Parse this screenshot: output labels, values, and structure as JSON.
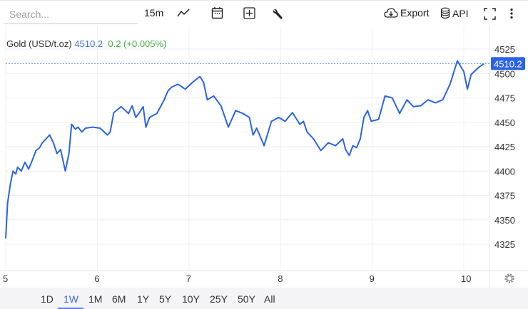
{
  "toolbar": {
    "search_placeholder": "Search...",
    "interval": "15m",
    "export": "Export",
    "api": "API",
    "icons": [
      "line-chart-icon",
      "calendar-icon",
      "add-icon",
      "wrench-icon",
      "cloud-download-icon",
      "database-icon",
      "fullscreen-icon",
      "more-icon"
    ]
  },
  "legend": {
    "name": "Gold (USD/t.oz)",
    "price": "4510.2",
    "change": "0.2 (+0.005%)",
    "price_color": "#3d6fe0",
    "change_color": "#3cb043"
  },
  "ranges": [
    "1D",
    "1W",
    "1M",
    "6M",
    "1Y",
    "5Y",
    "10Y",
    "25Y",
    "50Y",
    "All"
  ],
  "active_range": "1W",
  "chart_data": {
    "type": "line",
    "color": "#2b63e8",
    "last_value_label": "4510.2",
    "ylim": [
      4310,
      4540
    ],
    "xlim": [
      5,
      10.28
    ],
    "yticks": [
      4325,
      4350,
      4375,
      4400,
      4425,
      4450,
      4475,
      4500,
      4525
    ],
    "xticks": [
      5,
      6,
      7,
      8,
      9,
      10
    ],
    "grid": true,
    "x": [
      5.0,
      5.02,
      5.05,
      5.08,
      5.11,
      5.13,
      5.17,
      5.21,
      5.25,
      5.29,
      5.33,
      5.37,
      5.4,
      5.44,
      5.48,
      5.52,
      5.56,
      5.6,
      5.65,
      5.69,
      5.72,
      5.76,
      5.79,
      5.83,
      5.87,
      5.95,
      6.03,
      6.11,
      6.14,
      6.18,
      6.26,
      6.34,
      6.38,
      6.42,
      6.46,
      6.5,
      6.53,
      6.57,
      6.65,
      6.73,
      6.77,
      6.81,
      6.88,
      6.96,
      7.04,
      7.12,
      7.16,
      7.2,
      7.27,
      7.35,
      7.43,
      7.51,
      7.59,
      7.66,
      7.7,
      7.74,
      7.82,
      7.9,
      7.98,
      8.05,
      8.13,
      8.21,
      8.25,
      8.29,
      8.36,
      8.44,
      8.52,
      8.6,
      8.68,
      8.71,
      8.75,
      8.79,
      8.83,
      8.87,
      8.91,
      8.95,
      8.99,
      9.07,
      9.14,
      9.22,
      9.3,
      9.38,
      9.45,
      9.53,
      9.61,
      9.69,
      9.77,
      9.85,
      9.93,
      10.0,
      10.04,
      10.08,
      10.16,
      10.22
    ],
    "y": [
      4331,
      4367,
      4386,
      4400,
      4397,
      4404,
      4400,
      4409,
      4402,
      4411,
      4421,
      4424,
      4429,
      4433,
      4437,
      4429,
      4418,
      4422,
      4400,
      4418,
      4448,
      4443,
      4445,
      4440,
      4444,
      4445,
      4444,
      4437,
      4440,
      4460,
      4466,
      4459,
      4467,
      4455,
      4460,
      4466,
      4445,
      4455,
      4459,
      4473,
      4482,
      4486,
      4489,
      4484,
      4491,
      4497,
      4491,
      4473,
      4477,
      4467,
      4445,
      4462,
      4459,
      4455,
      4437,
      4444,
      4426,
      4451,
      4455,
      4451,
      4460,
      4448,
      4451,
      4440,
      4433,
      4421,
      4429,
      4426,
      4433,
      4422,
      4416,
      4426,
      4424,
      4433,
      4455,
      4462,
      4451,
      4453,
      4477,
      4475,
      4459,
      4473,
      4466,
      4467,
      4473,
      4470,
      4473,
      4489,
      4513,
      4502,
      4484,
      4499,
      4506,
      4510.2
    ]
  }
}
